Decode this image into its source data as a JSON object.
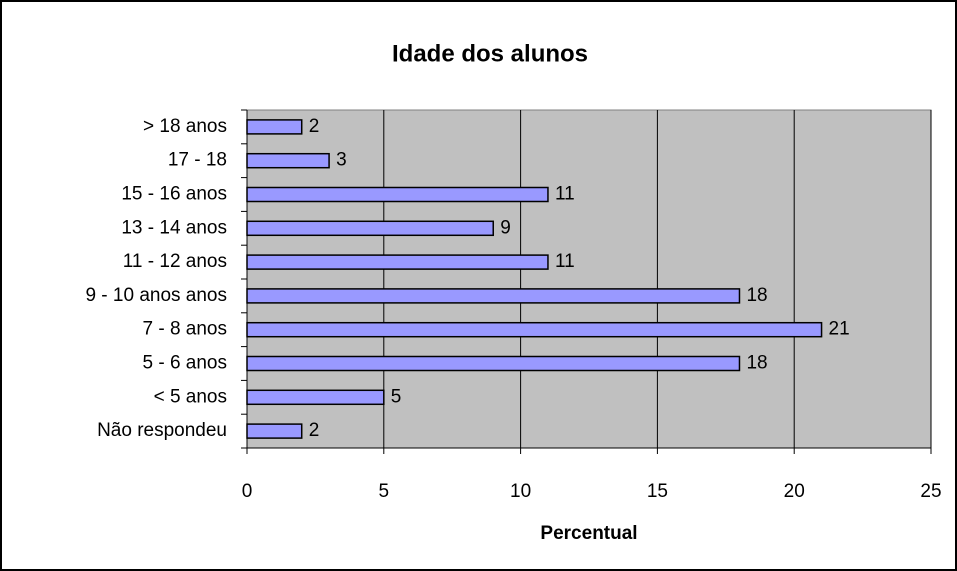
{
  "chart_data": {
    "type": "bar",
    "orientation": "horizontal",
    "title": "Idade dos alunos",
    "x_label": "Percentual",
    "categories": [
      "> 18 anos",
      "17 - 18",
      "15 - 16 anos",
      "13 - 14 anos",
      "11 - 12 anos",
      "9 - 10 anos anos",
      "7 - 8 anos",
      "5 - 6 anos",
      "< 5 anos",
      "Não respondeu"
    ],
    "values": [
      2,
      3,
      11,
      9,
      11,
      18,
      21,
      18,
      5,
      2
    ],
    "color": "#9999ff",
    "xlim": [
      0,
      25
    ],
    "xticks": [
      0,
      5,
      10,
      15,
      20,
      25
    ],
    "grid": true
  }
}
